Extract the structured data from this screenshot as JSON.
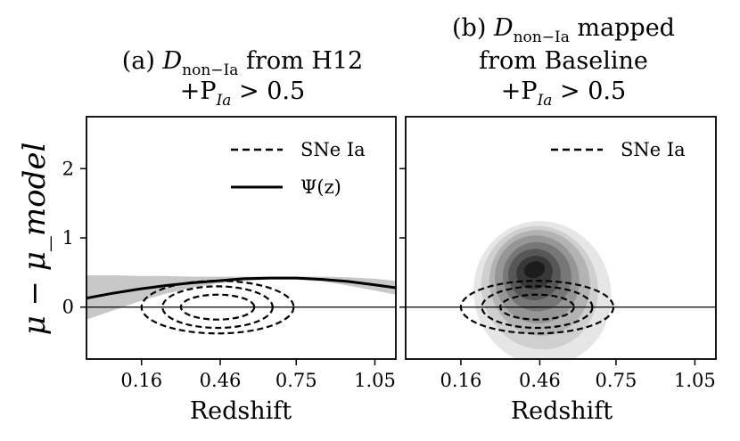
{
  "colors": {
    "background": "#ffffff",
    "axes": "#000000",
    "band": "#c8c8c8",
    "density_levels": [
      "#e6e6e6",
      "#cfcfcf",
      "#b3b3b3",
      "#969696",
      "#777777",
      "#575757",
      "#383838",
      "#1c1c1c"
    ]
  },
  "chart_data": [
    {
      "type": "line",
      "panel": "a",
      "title": "(a) D_non-Ia from H12 +P_Ia > 0.5",
      "title_parts": {
        "prefix": "(a) ",
        "var": "D",
        "sub": "non−Ia",
        "suffix": " from H12",
        "line2": "+P",
        "line2_sub": "Ia",
        "line2_rest": " > 0.5"
      },
      "xlabel": "Redshift",
      "ylabel": "μ − μ_model",
      "xlim": [
        -0.05,
        1.13
      ],
      "ylim": [
        -0.75,
        2.75
      ],
      "xticks": [
        0.16,
        0.46,
        0.75,
        1.05
      ],
      "yticks": [
        0,
        1,
        2
      ],
      "hline": 0,
      "legend": {
        "position": "top-right",
        "entries": [
          {
            "label": "SNe Ia",
            "style": "dashed"
          },
          {
            "label": "Ψ(z)",
            "style": "solid"
          }
        ]
      },
      "series": [
        {
          "name": "Ψ(z)",
          "style": "solid",
          "x": [
            -0.05,
            0.05,
            0.15,
            0.25,
            0.35,
            0.45,
            0.55,
            0.65,
            0.75,
            0.85,
            0.95,
            1.05,
            1.13
          ],
          "y": [
            0.13,
            0.2,
            0.26,
            0.31,
            0.35,
            0.38,
            0.41,
            0.42,
            0.42,
            0.4,
            0.37,
            0.32,
            0.28
          ]
        }
      ],
      "band": {
        "x": [
          -0.05,
          0.05,
          0.15,
          0.25,
          0.35,
          0.45,
          0.55,
          0.65,
          0.75,
          0.85,
          0.95,
          1.05,
          1.13
        ],
        "upper": [
          0.46,
          0.46,
          0.45,
          0.45,
          0.44,
          0.44,
          0.44,
          0.44,
          0.44,
          0.44,
          0.43,
          0.41,
          0.38
        ],
        "lower": [
          -0.18,
          -0.05,
          0.08,
          0.19,
          0.28,
          0.34,
          0.38,
          0.4,
          0.4,
          0.37,
          0.31,
          0.24,
          0.18
        ]
      },
      "contours": [
        {
          "name": "SNe Ia",
          "center": [
            0.45,
            0.0
          ],
          "radii": [
            [
              0.29,
              0.38
            ],
            [
              0.21,
              0.3
            ],
            [
              0.14,
              0.18
            ]
          ]
        }
      ]
    },
    {
      "type": "heatmap",
      "panel": "b",
      "title": "(b) D_non-Ia mapped from Baseline +P_Ia > 0.5",
      "title_parts": {
        "prefix": "(b) ",
        "var": "D",
        "sub": "non−Ia",
        "suffix": " mapped",
        "line2": "from Baseline",
        "line3": "+P",
        "line3_sub": "Ia",
        "line3_rest": " > 0.5"
      },
      "xlabel": "Redshift",
      "xlim": [
        -0.05,
        1.13
      ],
      "ylim": [
        -0.75,
        2.75
      ],
      "xticks": [
        0.16,
        0.46,
        0.75,
        1.05
      ],
      "yticks": [
        0,
        1,
        2
      ],
      "hline": 0,
      "legend": {
        "position": "top-right",
        "entries": [
          {
            "label": "SNe Ia",
            "style": "dashed"
          }
        ]
      },
      "density": {
        "center": [
          0.44,
          0.48
        ],
        "rotation_deg": -20,
        "levels": [
          {
            "rx": 0.26,
            "ry": 1.05,
            "offset": [
              0.03,
              -0.28
            ]
          },
          {
            "rx": 0.22,
            "ry": 0.9,
            "offset": [
              0.02,
              -0.2
            ]
          },
          {
            "rx": 0.19,
            "ry": 0.77,
            "offset": [
              0.02,
              -0.13
            ]
          },
          {
            "rx": 0.16,
            "ry": 0.64,
            "offset": [
              0.01,
              -0.08
            ]
          },
          {
            "rx": 0.13,
            "ry": 0.5,
            "offset": [
              0.01,
              -0.04
            ]
          },
          {
            "rx": 0.1,
            "ry": 0.37,
            "offset": [
              0.0,
              -0.01
            ]
          },
          {
            "rx": 0.07,
            "ry": 0.24,
            "offset": [
              0.0,
              0.02
            ]
          },
          {
            "rx": 0.04,
            "ry": 0.12,
            "offset": [
              0.0,
              0.06
            ]
          }
        ]
      },
      "contours": [
        {
          "name": "SNe Ia",
          "center": [
            0.45,
            0.0
          ],
          "radii": [
            [
              0.29,
              0.38
            ],
            [
              0.21,
              0.3
            ],
            [
              0.14,
              0.18
            ]
          ]
        }
      ]
    }
  ]
}
